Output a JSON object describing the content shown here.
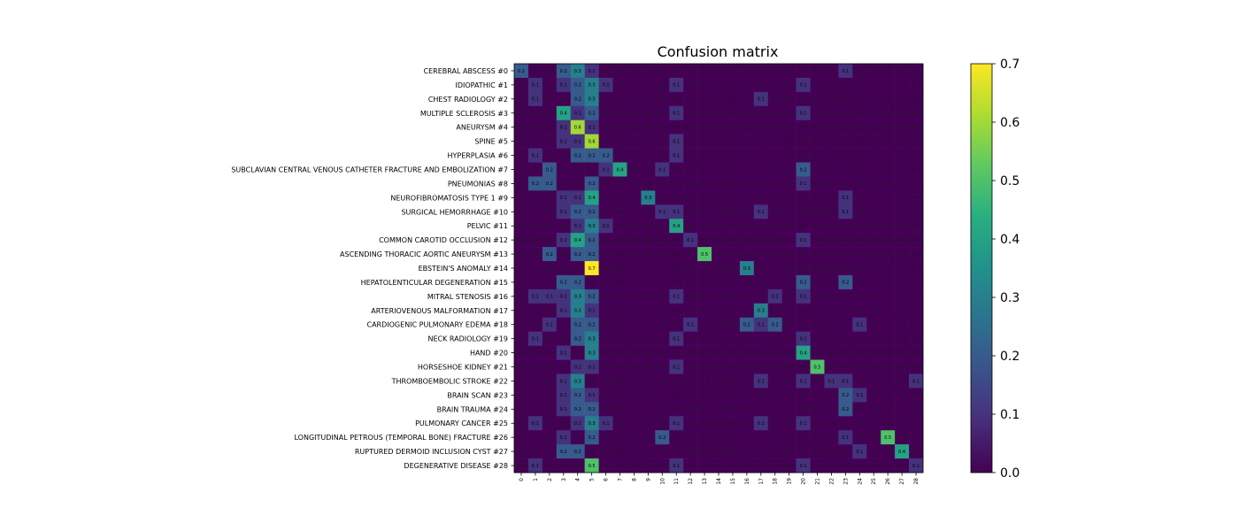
{
  "chart_data": {
    "type": "heatmap",
    "title": "Confusion matrix",
    "row_labels": [
      "CEREBRAL ABSCESS #0",
      "IDIOPATHIC #1",
      "CHEST RADIOLOGY #2",
      "MULTIPLE SCLEROSIS #3",
      "ANEURYSM #4",
      "SPINE #5",
      "HYPERPLASIA #6",
      "SUBCLAVIAN CENTRAL VENOUS CATHETER FRACTURE AND EMBOLIZATION #7",
      "PNEUMONIAS #8",
      "NEUROFIBROMATOSIS TYPE 1 #9",
      "SURGICAL HEMORRHAGE #10",
      "PELVIC #11",
      "COMMON CAROTID OCCLUSION #12",
      "ASCENDING THORACIC AORTIC ANEURYSM #13",
      "EBSTEIN'S ANOMALY #14",
      "HEPATOLENTICULAR DEGENERATION #15",
      "MITRAL STENOSIS #16",
      "ARTERIOVENOUS MALFORMATION #17",
      "CARDIOGENIC PULMONARY EDEMA #18",
      "NECK RADIOLOGY #19",
      "HAND #20",
      "HORSESHOE KIDNEY #21",
      "THROMBOEMBOLIC STROKE #22",
      "BRAIN SCAN #23",
      "BRAIN TRAUMA #24",
      "PULMONARY CANCER #25",
      "LONGITUDINAL PETROUS (TEMPORAL BONE) FRACTURE #26",
      "RUPTURED DERMOID INCLUSION CYST #27",
      "DEGENERATIVE DISEASE #28"
    ],
    "col_labels": [
      "0",
      "1",
      "2",
      "3",
      "4",
      "5",
      "6",
      "7",
      "8",
      "9",
      "10",
      "11",
      "12",
      "13",
      "14",
      "15",
      "16",
      "17",
      "18",
      "19",
      "20",
      "21",
      "22",
      "23",
      "24",
      "25",
      "26",
      "27",
      "28"
    ],
    "cells": [
      [
        0,
        0,
        0.2
      ],
      [
        0,
        3,
        0.2
      ],
      [
        0,
        4,
        0.3
      ],
      [
        0,
        5,
        0.1
      ],
      [
        0,
        23,
        0.1
      ],
      [
        1,
        1,
        0.1
      ],
      [
        1,
        3,
        0.1
      ],
      [
        1,
        4,
        0.2
      ],
      [
        1,
        5,
        0.3
      ],
      [
        1,
        6,
        0.1
      ],
      [
        1,
        11,
        0.1
      ],
      [
        1,
        20,
        0.1
      ],
      [
        2,
        1,
        0.1
      ],
      [
        2,
        4,
        0.2
      ],
      [
        2,
        5,
        0.3
      ],
      [
        2,
        17,
        0.1
      ],
      [
        3,
        3,
        0.4
      ],
      [
        3,
        4,
        0.1
      ],
      [
        3,
        5,
        0.2
      ],
      [
        3,
        11,
        0.1
      ],
      [
        3,
        20,
        0.1
      ],
      [
        4,
        3,
        0.1
      ],
      [
        4,
        4,
        0.6
      ],
      [
        4,
        5,
        0.1
      ],
      [
        5,
        3,
        0.1
      ],
      [
        5,
        4,
        0.1
      ],
      [
        5,
        5,
        0.6
      ],
      [
        5,
        11,
        0.1
      ],
      [
        6,
        1,
        0.1
      ],
      [
        6,
        4,
        0.2
      ],
      [
        6,
        5,
        0.2
      ],
      [
        6,
        6,
        0.2
      ],
      [
        6,
        11,
        0.1
      ],
      [
        7,
        2,
        0.2
      ],
      [
        7,
        6,
        0.1
      ],
      [
        7,
        7,
        0.4
      ],
      [
        7,
        10,
        0.1
      ],
      [
        7,
        20,
        0.2
      ],
      [
        8,
        1,
        0.2
      ],
      [
        8,
        2,
        0.2
      ],
      [
        8,
        5,
        0.2
      ],
      [
        8,
        20,
        0.1
      ],
      [
        9,
        3,
        0.1
      ],
      [
        9,
        4,
        0.1
      ],
      [
        9,
        5,
        0.4
      ],
      [
        9,
        9,
        0.3
      ],
      [
        9,
        23,
        0.1
      ],
      [
        10,
        3,
        0.1
      ],
      [
        10,
        4,
        0.2
      ],
      [
        10,
        5,
        0.2
      ],
      [
        10,
        10,
        0.1
      ],
      [
        10,
        11,
        0.1
      ],
      [
        10,
        17,
        0.1
      ],
      [
        10,
        23,
        0.1
      ],
      [
        11,
        4,
        0.1
      ],
      [
        11,
        5,
        0.3
      ],
      [
        11,
        6,
        0.1
      ],
      [
        11,
        11,
        0.4
      ],
      [
        12,
        3,
        0.1
      ],
      [
        12,
        4,
        0.4
      ],
      [
        12,
        5,
        0.2
      ],
      [
        12,
        12,
        0.1
      ],
      [
        12,
        20,
        0.1
      ],
      [
        13,
        2,
        0.2
      ],
      [
        13,
        4,
        0.2
      ],
      [
        13,
        5,
        0.2
      ],
      [
        13,
        13,
        0.5
      ],
      [
        14,
        5,
        0.7
      ],
      [
        14,
        16,
        0.3
      ],
      [
        15,
        3,
        0.2
      ],
      [
        15,
        4,
        0.2
      ],
      [
        15,
        20,
        0.2
      ],
      [
        15,
        23,
        0.2
      ],
      [
        16,
        1,
        0.1
      ],
      [
        16,
        2,
        0.1
      ],
      [
        16,
        3,
        0.1
      ],
      [
        16,
        4,
        0.3
      ],
      [
        16,
        5,
        0.2
      ],
      [
        16,
        11,
        0.1
      ],
      [
        16,
        18,
        0.1
      ],
      [
        16,
        20,
        0.1
      ],
      [
        17,
        3,
        0.1
      ],
      [
        17,
        4,
        0.3
      ],
      [
        17,
        5,
        0.1
      ],
      [
        17,
        17,
        0.3
      ],
      [
        18,
        2,
        0.1
      ],
      [
        18,
        4,
        0.2
      ],
      [
        18,
        5,
        0.2
      ],
      [
        18,
        12,
        0.1
      ],
      [
        18,
        16,
        0.2
      ],
      [
        18,
        17,
        0.1
      ],
      [
        18,
        18,
        0.2
      ],
      [
        18,
        24,
        0.1
      ],
      [
        19,
        1,
        0.1
      ],
      [
        19,
        4,
        0.2
      ],
      [
        19,
        5,
        0.3
      ],
      [
        19,
        11,
        0.1
      ],
      [
        19,
        20,
        0.1
      ],
      [
        20,
        3,
        0.1
      ],
      [
        20,
        5,
        0.3
      ],
      [
        20,
        20,
        0.4
      ],
      [
        21,
        4,
        0.1
      ],
      [
        21,
        5,
        0.1
      ],
      [
        21,
        11,
        0.1
      ],
      [
        21,
        21,
        0.5
      ],
      [
        22,
        3,
        0.1
      ],
      [
        22,
        4,
        0.3
      ],
      [
        22,
        17,
        0.1
      ],
      [
        22,
        20,
        0.1
      ],
      [
        22,
        22,
        0.1
      ],
      [
        22,
        23,
        0.1
      ],
      [
        22,
        28,
        0.1
      ],
      [
        23,
        3,
        0.1
      ],
      [
        23,
        4,
        0.2
      ],
      [
        23,
        5,
        0.1
      ],
      [
        23,
        23,
        0.2
      ],
      [
        23,
        24,
        0.1
      ],
      [
        24,
        3,
        0.1
      ],
      [
        24,
        4,
        0.2
      ],
      [
        24,
        5,
        0.2
      ],
      [
        24,
        23,
        0.2
      ],
      [
        25,
        1,
        0.1
      ],
      [
        25,
        4,
        0.1
      ],
      [
        25,
        5,
        0.3
      ],
      [
        25,
        6,
        0.1
      ],
      [
        25,
        11,
        0.1
      ],
      [
        25,
        17,
        0.1
      ],
      [
        25,
        20,
        0.1
      ],
      [
        26,
        3,
        0.1
      ],
      [
        26,
        5,
        0.2
      ],
      [
        26,
        10,
        0.2
      ],
      [
        26,
        23,
        0.1
      ],
      [
        26,
        26,
        0.5
      ],
      [
        27,
        3,
        0.2
      ],
      [
        27,
        4,
        0.2
      ],
      [
        27,
        24,
        0.1
      ],
      [
        27,
        27,
        0.4
      ],
      [
        28,
        1,
        0.1
      ],
      [
        28,
        5,
        0.5
      ],
      [
        28,
        11,
        0.1
      ],
      [
        28,
        20,
        0.1
      ],
      [
        28,
        28,
        0.1
      ]
    ],
    "default_value_label": "0.0",
    "colorbar": {
      "range": [
        0,
        0.7
      ],
      "ticks": [
        "0.0",
        "0.1",
        "0.2",
        "0.3",
        "0.4",
        "0.5",
        "0.6",
        "0.7"
      ],
      "colormap": "viridis"
    },
    "grid": false
  }
}
